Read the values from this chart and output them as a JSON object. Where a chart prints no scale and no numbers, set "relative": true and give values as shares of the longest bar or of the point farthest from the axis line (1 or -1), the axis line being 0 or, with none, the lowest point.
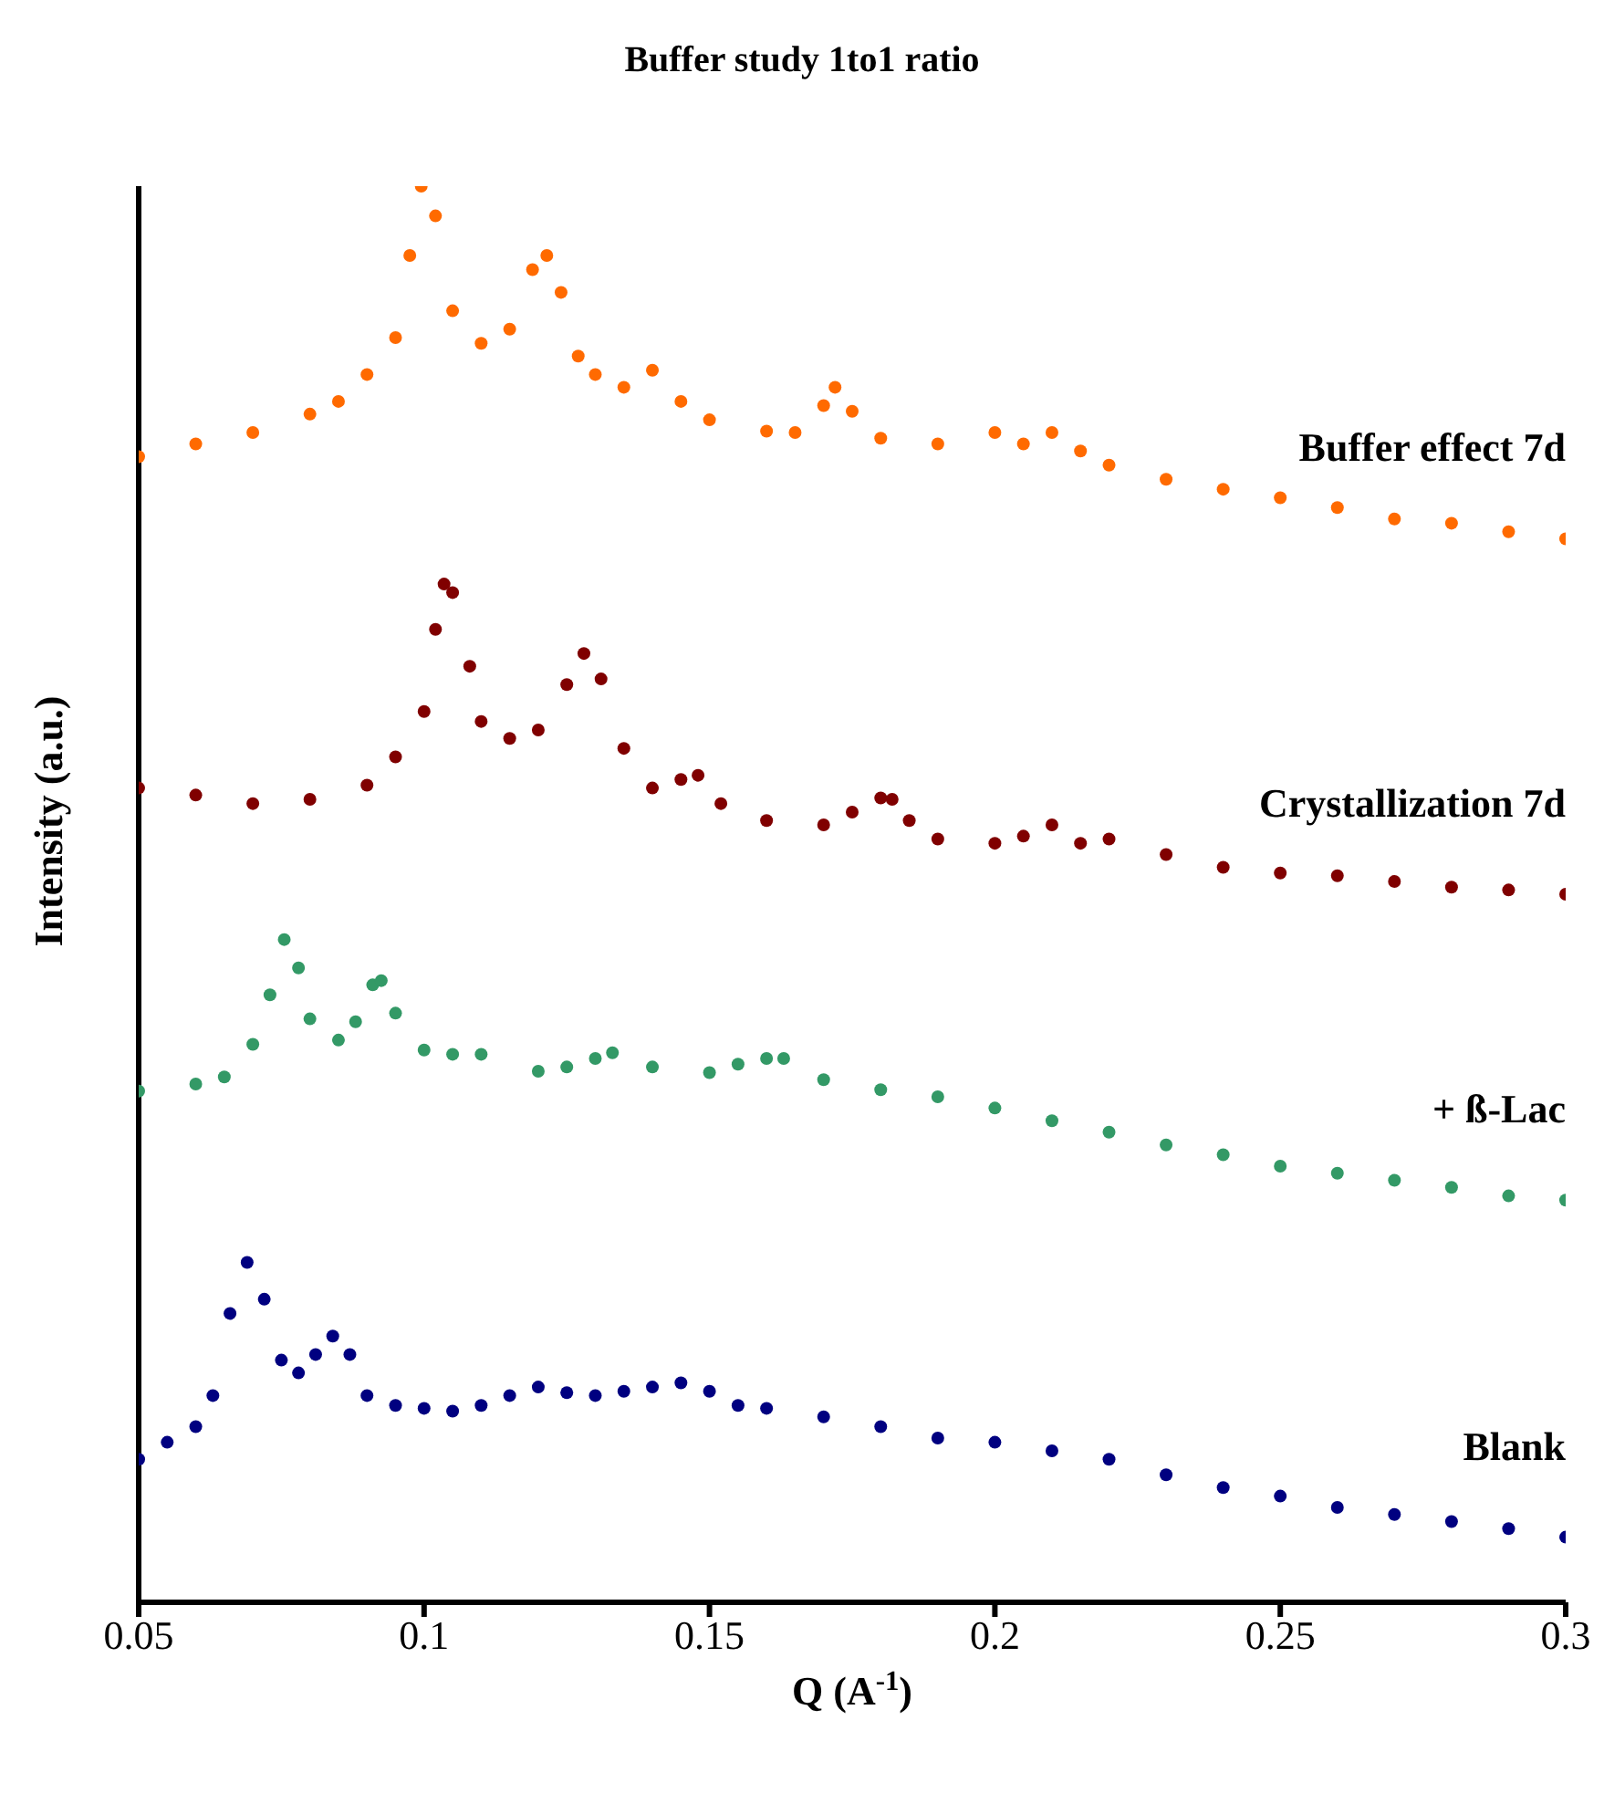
{
  "chart_data": {
    "type": "scatter",
    "title": "Buffer study 1to1 ratio",
    "xlabel": "Q (A$^{-1}$)",
    "ylabel": "Intensity (a.u.)",
    "relative": true,
    "marker": "circle",
    "xlim": [
      0.05,
      0.3
    ],
    "xticks": [
      0.05,
      0.1,
      0.15,
      0.2,
      0.25,
      0.3
    ],
    "series": [
      {
        "name": "Buffer effect 7d",
        "color": "#ff6a00",
        "x": [
          0.05,
          0.06,
          0.07,
          0.08,
          0.085,
          0.09,
          0.095,
          0.0975,
          0.0995,
          0.102,
          0.105,
          0.11,
          0.115,
          0.119,
          0.1215,
          0.124,
          0.127,
          0.13,
          0.135,
          0.14,
          0.145,
          0.15,
          0.16,
          0.165,
          0.17,
          0.172,
          0.175,
          0.18,
          0.19,
          0.2,
          0.205,
          0.21,
          0.215,
          0.22,
          0.23,
          0.24,
          0.25,
          0.26,
          0.27,
          0.28,
          0.29,
          0.3
        ],
        "values": [
          0.809,
          0.818,
          0.826,
          0.839,
          0.848,
          0.867,
          0.893,
          0.951,
          1.0,
          0.979,
          0.912,
          0.889,
          0.899,
          0.941,
          0.951,
          0.925,
          0.88,
          0.867,
          0.858,
          0.87,
          0.848,
          0.835,
          0.827,
          0.826,
          0.845,
          0.858,
          0.841,
          0.822,
          0.818,
          0.826,
          0.818,
          0.826,
          0.813,
          0.803,
          0.793,
          0.786,
          0.78,
          0.773,
          0.765,
          0.762,
          0.756,
          0.751
        ]
      },
      {
        "name": "Crystallization 7d",
        "color": "#800000",
        "x": [
          0.05,
          0.06,
          0.07,
          0.08,
          0.09,
          0.095,
          0.1,
          0.102,
          0.1035,
          0.105,
          0.108,
          0.11,
          0.115,
          0.12,
          0.125,
          0.128,
          0.131,
          0.135,
          0.14,
          0.145,
          0.148,
          0.152,
          0.16,
          0.17,
          0.175,
          0.18,
          0.182,
          0.185,
          0.19,
          0.2,
          0.205,
          0.21,
          0.215,
          0.22,
          0.23,
          0.24,
          0.25,
          0.26,
          0.27,
          0.28,
          0.29,
          0.3
        ],
        "values": [
          0.575,
          0.57,
          0.564,
          0.567,
          0.577,
          0.597,
          0.629,
          0.687,
          0.719,
          0.713,
          0.661,
          0.622,
          0.61,
          0.616,
          0.648,
          0.67,
          0.652,
          0.603,
          0.575,
          0.581,
          0.584,
          0.564,
          0.552,
          0.549,
          0.558,
          0.568,
          0.567,
          0.552,
          0.539,
          0.536,
          0.541,
          0.549,
          0.536,
          0.539,
          0.528,
          0.519,
          0.515,
          0.513,
          0.509,
          0.505,
          0.503,
          0.5
        ]
      },
      {
        "name": "+ ß-Lac",
        "color": "#339966",
        "x": [
          0.05,
          0.06,
          0.065,
          0.07,
          0.073,
          0.0755,
          0.078,
          0.08,
          0.085,
          0.088,
          0.091,
          0.0925,
          0.095,
          0.1,
          0.105,
          0.11,
          0.12,
          0.125,
          0.13,
          0.133,
          0.14,
          0.15,
          0.155,
          0.16,
          0.163,
          0.17,
          0.18,
          0.19,
          0.2,
          0.21,
          0.22,
          0.23,
          0.24,
          0.25,
          0.26,
          0.27,
          0.28,
          0.29,
          0.3
        ],
        "values": [
          0.361,
          0.366,
          0.371,
          0.394,
          0.429,
          0.468,
          0.448,
          0.412,
          0.397,
          0.41,
          0.436,
          0.439,
          0.416,
          0.39,
          0.387,
          0.387,
          0.375,
          0.378,
          0.384,
          0.388,
          0.378,
          0.374,
          0.38,
          0.384,
          0.384,
          0.369,
          0.362,
          0.357,
          0.349,
          0.34,
          0.332,
          0.323,
          0.316,
          0.308,
          0.303,
          0.298,
          0.293,
          0.287,
          0.284
        ]
      },
      {
        "name": "Blank",
        "color": "#000080",
        "x": [
          0.05,
          0.055,
          0.06,
          0.063,
          0.066,
          0.069,
          0.072,
          0.075,
          0.078,
          0.081,
          0.084,
          0.087,
          0.09,
          0.095,
          0.1,
          0.105,
          0.11,
          0.115,
          0.12,
          0.125,
          0.13,
          0.135,
          0.14,
          0.145,
          0.15,
          0.155,
          0.16,
          0.17,
          0.18,
          0.19,
          0.2,
          0.21,
          0.22,
          0.23,
          0.24,
          0.25,
          0.26,
          0.27,
          0.28,
          0.29,
          0.3
        ],
        "values": [
          0.101,
          0.113,
          0.124,
          0.146,
          0.204,
          0.24,
          0.214,
          0.171,
          0.162,
          0.175,
          0.188,
          0.175,
          0.146,
          0.139,
          0.137,
          0.135,
          0.139,
          0.146,
          0.152,
          0.148,
          0.146,
          0.149,
          0.152,
          0.155,
          0.149,
          0.139,
          0.137,
          0.131,
          0.124,
          0.116,
          0.113,
          0.107,
          0.101,
          0.09,
          0.081,
          0.075,
          0.067,
          0.062,
          0.057,
          0.052,
          0.046
        ]
      }
    ]
  }
}
